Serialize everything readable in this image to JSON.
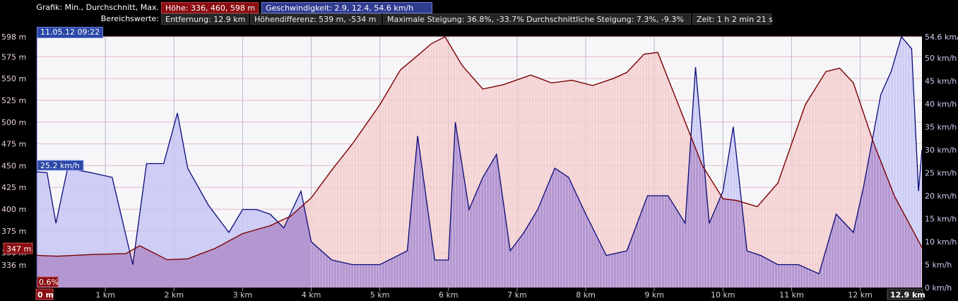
{
  "header": {
    "row1_label": "Grafik: Min., Durchschnitt, Max.",
    "height_stats": "Höhe: 336, 460, 598 m",
    "speed_stats": "Geschwindigkeit: 2.9, 12.4, 54.6 km/h",
    "row2_label": "Bereichswerte:",
    "distance": "Entfernung: 12.9 km",
    "height_diff": "Höhendifferenz: 539 m, -534 m",
    "slope": "Maximale Steigung: 36.8%, -33.7% Durchschnittliche Steigung: 7.3%, -9.3%",
    "time": "Zeit: 1 h 2 min 21 s"
  },
  "date_tag": "11.05.12 09:22",
  "cursor": {
    "speed_label": "25.2 km/h",
    "height_label": "347 m",
    "grade_label": "0.6%",
    "distance_label": "0 m",
    "end_label": "12.9 km"
  },
  "colors": {
    "height_line": "#7a0000",
    "height_fill": "#f3c6c6",
    "speed_line": "#0a0a78",
    "speed_fill": "#c5c5f5",
    "overlap_fill": "#a68ad0",
    "background": "#f6f6f9",
    "grid": "#b8b8c0",
    "height_tag": "#8a0d12",
    "speed_tag": "#2c47a8"
  },
  "chart_data": {
    "type": "area",
    "xlabel": "",
    "x_ticks": [
      "1 km",
      "2 km",
      "3 km",
      "4 km",
      "5 km",
      "6 km",
      "7 km",
      "8 km",
      "9 km",
      "10 km",
      "11 km",
      "12 km"
    ],
    "x_tick_values": [
      1,
      2,
      3,
      4,
      5,
      6,
      7,
      8,
      9,
      10,
      11,
      12
    ],
    "xlim": [
      0,
      12.9
    ],
    "y_left": {
      "unit": "m",
      "ticks": [
        "598 m",
        "575 m",
        "550 m",
        "525 m",
        "500 m",
        "475 m",
        "450 m",
        "425 m",
        "400 m",
        "375 m",
        "350 m",
        "336 m"
      ],
      "tick_values": [
        598,
        575,
        550,
        525,
        500,
        475,
        450,
        425,
        400,
        375,
        350,
        336
      ],
      "ylim": [
        310,
        598
      ]
    },
    "y_right": {
      "unit": "km/h",
      "ticks": [
        "54.6 km/h",
        "50 km/h",
        "45 km/h",
        "40 km/h",
        "35 km/h",
        "30 km/h",
        "25 km/h",
        "20 km/h",
        "15 km/h",
        "10 km/h",
        "5 km/h",
        "0 km/h"
      ],
      "tick_values": [
        54.6,
        50,
        45,
        40,
        35,
        30,
        25,
        20,
        15,
        10,
        5,
        0
      ],
      "ylim": [
        0,
        54.6
      ]
    },
    "grid": true,
    "series": [
      {
        "name": "Höhe",
        "axis": "left",
        "x": [
          0,
          0.3,
          0.8,
          1.3,
          1.5,
          1.9,
          2.2,
          2.6,
          3.0,
          3.4,
          3.7,
          4.0,
          4.3,
          4.6,
          5.0,
          5.3,
          5.5,
          5.75,
          5.95,
          6.2,
          6.5,
          6.8,
          7.2,
          7.5,
          7.8,
          8.1,
          8.4,
          8.6,
          8.85,
          9.05,
          9.3,
          9.7,
          10.0,
          10.2,
          10.5,
          10.8,
          11.2,
          11.5,
          11.7,
          11.9,
          12.2,
          12.5,
          12.9
        ],
        "values": [
          347,
          346,
          348,
          349,
          358,
          342,
          343,
          355,
          372,
          381,
          392,
          413,
          445,
          475,
          520,
          560,
          573,
          590,
          598,
          565,
          538,
          543,
          554,
          545,
          548,
          542,
          550,
          557,
          578,
          580,
          530,
          450,
          412,
          410,
          403,
          430,
          520,
          558,
          562,
          545,
          475,
          415,
          356
        ]
      },
      {
        "name": "Geschwindigkeit",
        "axis": "right",
        "x": [
          0,
          0.15,
          0.28,
          0.45,
          0.8,
          1.1,
          1.4,
          1.6,
          1.85,
          2.05,
          2.2,
          2.5,
          2.8,
          3.0,
          3.2,
          3.4,
          3.6,
          3.85,
          4.0,
          4.3,
          4.6,
          5.0,
          5.4,
          5.55,
          5.8,
          6.0,
          6.1,
          6.3,
          6.5,
          6.7,
          6.9,
          7.1,
          7.3,
          7.55,
          7.75,
          8.0,
          8.3,
          8.6,
          8.9,
          9.2,
          9.45,
          9.6,
          9.8,
          10.0,
          10.15,
          10.35,
          10.55,
          10.8,
          11.1,
          11.4,
          11.65,
          11.9,
          12.05,
          12.3,
          12.45,
          12.6,
          12.75,
          12.85,
          12.9
        ],
        "values": [
          25.2,
          25,
          14,
          26,
          25,
          24,
          5,
          27,
          27,
          38,
          26,
          18,
          12,
          17,
          17,
          16,
          13,
          21,
          10,
          6,
          5,
          5,
          8,
          33,
          6,
          6,
          36,
          17,
          24,
          29,
          8,
          12,
          17,
          26,
          24,
          16,
          7,
          8,
          20,
          20,
          14,
          48,
          14,
          21,
          35,
          8,
          7,
          5,
          5,
          3,
          16,
          12,
          22,
          42,
          47,
          54.6,
          52,
          21,
          30
        ]
      }
    ]
  }
}
